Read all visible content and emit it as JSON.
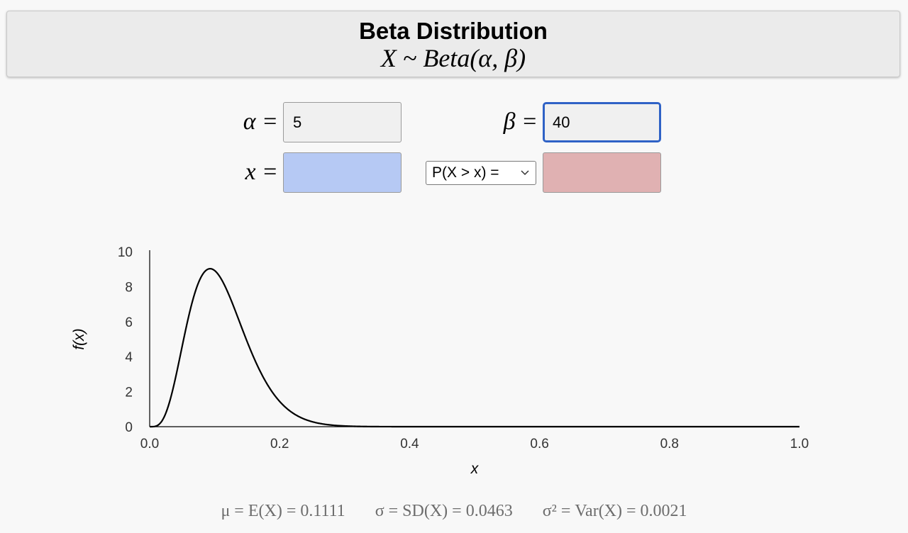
{
  "header": {
    "title": "Beta Distribution",
    "subtitle": "X ~ Beta(α, β)"
  },
  "inputs": {
    "alpha_label": "α =",
    "alpha_value": "5",
    "beta_label": "β =",
    "beta_value": "40",
    "x_label": "x =",
    "x_value": "",
    "prob_select": "P(X > x) =",
    "prob_value": ""
  },
  "colors": {
    "x_field": "#b6c9f4",
    "prob_field": "#e0b1b2",
    "focus_border": "#2f62c6"
  },
  "chart_data": {
    "type": "line",
    "xlabel": "x",
    "ylabel": "f(x)",
    "xlim": [
      0,
      1
    ],
    "ylim": [
      0,
      10
    ],
    "x_ticks": [
      "0.0",
      "0.2",
      "0.4",
      "0.6",
      "0.8",
      "1.0"
    ],
    "y_ticks": [
      "0",
      "2",
      "4",
      "6",
      "8",
      "10"
    ],
    "series": [
      {
        "distribution": "beta",
        "alpha": 5,
        "beta": 40
      }
    ]
  },
  "stats": {
    "mean": "μ = E(X) = 0.1111",
    "sd": "σ = SD(X) = 0.0463",
    "var": "σ² = Var(X) = 0.0021"
  }
}
